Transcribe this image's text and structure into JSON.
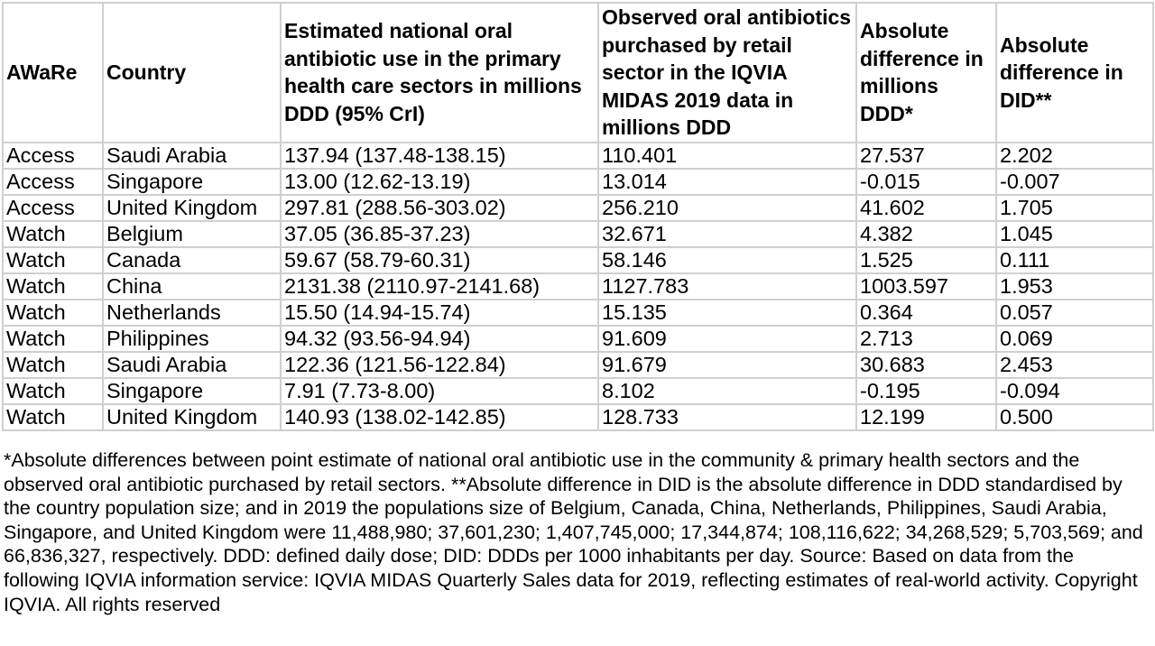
{
  "table": {
    "headers": [
      "AWaRe",
      "Country",
      "Estimated national oral antibiotic use in the primary health care sectors in millions DDD (95% CrI)",
      "Observed oral antibiotics purchased by retail sector in the IQVIA MIDAS 2019 data in millions DDD",
      "Absolute difference in millions DDD*",
      "Absolute difference in DID**"
    ],
    "rows": [
      [
        "Access",
        "Saudi Arabia",
        "137.94 (137.48-138.15)",
        "110.401",
        "27.537",
        "2.202"
      ],
      [
        "Access",
        "Singapore",
        "13.00 (12.62-13.19)",
        "13.014",
        "-0.015",
        "-0.007"
      ],
      [
        "Access",
        "United Kingdom",
        "297.81 (288.56-303.02)",
        "256.210",
        "41.602",
        "1.705"
      ],
      [
        "Watch",
        "Belgium",
        "37.05 (36.85-37.23)",
        "32.671",
        "4.382",
        "1.045"
      ],
      [
        "Watch",
        "Canada",
        "59.67 (58.79-60.31)",
        "58.146",
        "1.525",
        "0.111"
      ],
      [
        "Watch",
        "China",
        "2131.38 (2110.97-2141.68)",
        "1127.783",
        "1003.597",
        "1.953"
      ],
      [
        "Watch",
        "Netherlands",
        "15.50 (14.94-15.74)",
        "15.135",
        "0.364",
        "0.057"
      ],
      [
        "Watch",
        "Philippines",
        "94.32 (93.56-94.94)",
        "91.609",
        "2.713",
        "0.069"
      ],
      [
        "Watch",
        "Saudi Arabia",
        "122.36 (121.56-122.84)",
        "91.679",
        "30.683",
        "2.453"
      ],
      [
        "Watch",
        "Singapore",
        "7.91 (7.73-8.00)",
        "8.102",
        "-0.195",
        "-0.094"
      ],
      [
        "Watch",
        "United Kingdom",
        "140.93 (138.02-142.85)",
        "128.733",
        "12.199",
        "0.500"
      ]
    ]
  },
  "footnote": "*Absolute differences between point estimate of national oral antibiotic use in the community & primary health sectors and the observed oral antibiotic purchased by retail sectors. **Absolute difference in DID is the absolute difference in DDD standardised by the country population size; and in 2019 the populations size of Belgium, Canada, China, Netherlands, Philippines, Saudi Arabia, Singapore, and United Kingdom were 11,488,980; 37,601,230; 1,407,745,000; 17,344,874; 108,116,622; 34,268,529; 5,703,569; and 66,836,327, respectively. DDD: defined daily dose; DID: DDDs per 1000 inhabitants per day. Source:  Based on data from the following IQVIA information service: IQVIA MIDAS Quarterly Sales data for 2019, reflecting estimates of real-world activity. Copyright IQVIA. All rights reserved"
}
